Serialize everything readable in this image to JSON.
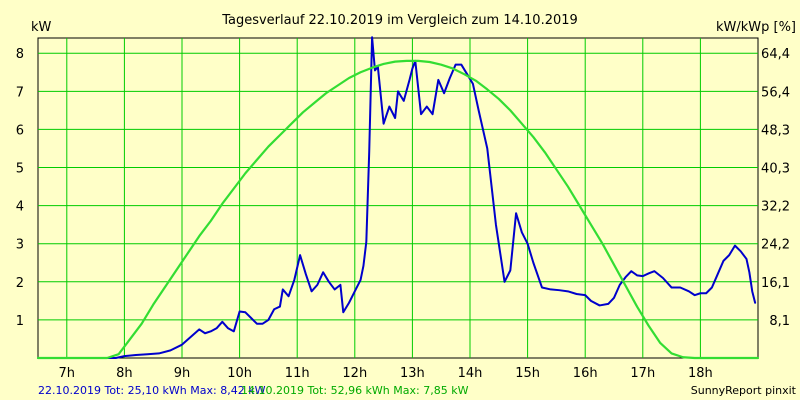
{
  "chart_data": {
    "type": "line",
    "title": "Tagesverlauf 22.10.2019 im Vergleich zum 14.10.2019",
    "ylabel_left": "kW",
    "ylabel_right": "kW/kWp [%]",
    "xlim": [
      6.5,
      19.0
    ],
    "ylim": [
      0,
      8.4
    ],
    "x_ticks": [
      7,
      8,
      9,
      10,
      11,
      12,
      13,
      14,
      15,
      16,
      17,
      18
    ],
    "x_tick_labels": [
      "7h",
      "8h",
      "9h",
      "10h",
      "11h",
      "12h",
      "13h",
      "14h",
      "15h",
      "16h",
      "17h",
      "18h"
    ],
    "y_ticks_left": [
      1,
      2,
      3,
      4,
      5,
      6,
      7,
      8
    ],
    "y_tick_labels_left": [
      "1",
      "2",
      "3",
      "4",
      "5",
      "6",
      "7",
      "8"
    ],
    "y_ticks_right": [
      1,
      2,
      3,
      4,
      5,
      6,
      7,
      8
    ],
    "y_tick_labels_right": [
      "8,1",
      "16,1",
      "24,2",
      "32,2",
      "40,3",
      "48,3",
      "56,4",
      "64,4"
    ],
    "grid": true,
    "colors": {
      "background": "#ffffc8",
      "grid": "#00cc00",
      "series_1": "#0000cc",
      "series_2": "#33dd33"
    },
    "series": [
      {
        "name": "22.10.2019",
        "color": "#0000cc",
        "points": [
          [
            6.5,
            0.0
          ],
          [
            7.0,
            0.0
          ],
          [
            7.5,
            0.0
          ],
          [
            7.85,
            0.0
          ],
          [
            8.0,
            0.05
          ],
          [
            8.2,
            0.08
          ],
          [
            8.4,
            0.1
          ],
          [
            8.6,
            0.12
          ],
          [
            8.8,
            0.2
          ],
          [
            9.0,
            0.35
          ],
          [
            9.15,
            0.55
          ],
          [
            9.3,
            0.75
          ],
          [
            9.4,
            0.65
          ],
          [
            9.5,
            0.7
          ],
          [
            9.6,
            0.78
          ],
          [
            9.7,
            0.95
          ],
          [
            9.8,
            0.78
          ],
          [
            9.9,
            0.7
          ],
          [
            10.0,
            1.22
          ],
          [
            10.1,
            1.2
          ],
          [
            10.2,
            1.05
          ],
          [
            10.3,
            0.9
          ],
          [
            10.4,
            0.9
          ],
          [
            10.5,
            1.0
          ],
          [
            10.6,
            1.28
          ],
          [
            10.7,
            1.35
          ],
          [
            10.75,
            1.8
          ],
          [
            10.85,
            1.62
          ],
          [
            10.95,
            2.05
          ],
          [
            11.05,
            2.7
          ],
          [
            11.15,
            2.2
          ],
          [
            11.25,
            1.75
          ],
          [
            11.35,
            1.92
          ],
          [
            11.45,
            2.25
          ],
          [
            11.55,
            2.0
          ],
          [
            11.65,
            1.8
          ],
          [
            11.75,
            1.92
          ],
          [
            11.8,
            1.2
          ],
          [
            11.9,
            1.45
          ],
          [
            12.0,
            1.75
          ],
          [
            12.1,
            2.05
          ],
          [
            12.15,
            2.42
          ],
          [
            12.2,
            3.05
          ],
          [
            12.25,
            5.4
          ],
          [
            12.3,
            8.42
          ],
          [
            12.35,
            7.55
          ],
          [
            12.4,
            7.65
          ],
          [
            12.5,
            6.15
          ],
          [
            12.6,
            6.6
          ],
          [
            12.7,
            6.3
          ],
          [
            12.75,
            7.0
          ],
          [
            12.85,
            6.75
          ],
          [
            12.95,
            7.3
          ],
          [
            13.0,
            7.6
          ],
          [
            13.05,
            7.8
          ],
          [
            13.15,
            6.4
          ],
          [
            13.25,
            6.6
          ],
          [
            13.35,
            6.4
          ],
          [
            13.45,
            7.3
          ],
          [
            13.55,
            6.95
          ],
          [
            13.65,
            7.35
          ],
          [
            13.75,
            7.7
          ],
          [
            13.85,
            7.7
          ],
          [
            13.95,
            7.45
          ],
          [
            14.05,
            7.2
          ],
          [
            14.15,
            6.5
          ],
          [
            14.3,
            5.5
          ],
          [
            14.45,
            3.5
          ],
          [
            14.6,
            2.0
          ],
          [
            14.7,
            2.3
          ],
          [
            14.8,
            3.8
          ],
          [
            14.9,
            3.3
          ],
          [
            15.0,
            3.0
          ],
          [
            15.1,
            2.5
          ],
          [
            15.25,
            1.85
          ],
          [
            15.4,
            1.8
          ],
          [
            15.55,
            1.78
          ],
          [
            15.7,
            1.75
          ],
          [
            15.85,
            1.68
          ],
          [
            16.0,
            1.65
          ],
          [
            16.1,
            1.5
          ],
          [
            16.25,
            1.38
          ],
          [
            16.4,
            1.42
          ],
          [
            16.5,
            1.58
          ],
          [
            16.6,
            1.92
          ],
          [
            16.7,
            2.12
          ],
          [
            16.8,
            2.28
          ],
          [
            16.9,
            2.17
          ],
          [
            17.0,
            2.15
          ],
          [
            17.1,
            2.22
          ],
          [
            17.2,
            2.28
          ],
          [
            17.35,
            2.1
          ],
          [
            17.5,
            1.85
          ],
          [
            17.65,
            1.85
          ],
          [
            17.8,
            1.75
          ],
          [
            17.9,
            1.65
          ],
          [
            18.0,
            1.7
          ],
          [
            18.1,
            1.7
          ],
          [
            18.2,
            1.85
          ],
          [
            18.3,
            2.2
          ],
          [
            18.4,
            2.55
          ],
          [
            18.5,
            2.7
          ],
          [
            18.6,
            2.95
          ],
          [
            18.7,
            2.8
          ],
          [
            18.8,
            2.6
          ],
          [
            18.85,
            2.25
          ],
          [
            18.9,
            1.75
          ],
          [
            18.95,
            1.45
          ]
        ]
      },
      {
        "name": "14.10.2019",
        "color": "#33dd33",
        "points": [
          [
            6.5,
            0.0
          ],
          [
            7.0,
            0.0
          ],
          [
            7.4,
            0.0
          ],
          [
            7.7,
            0.0
          ],
          [
            7.9,
            0.1
          ],
          [
            8.1,
            0.5
          ],
          [
            8.3,
            0.9
          ],
          [
            8.5,
            1.4
          ],
          [
            8.7,
            1.85
          ],
          [
            8.9,
            2.3
          ],
          [
            9.1,
            2.75
          ],
          [
            9.3,
            3.2
          ],
          [
            9.5,
            3.6
          ],
          [
            9.7,
            4.05
          ],
          [
            9.9,
            4.45
          ],
          [
            10.1,
            4.85
          ],
          [
            10.3,
            5.2
          ],
          [
            10.5,
            5.55
          ],
          [
            10.7,
            5.85
          ],
          [
            10.9,
            6.15
          ],
          [
            11.1,
            6.45
          ],
          [
            11.3,
            6.7
          ],
          [
            11.5,
            6.95
          ],
          [
            11.7,
            7.15
          ],
          [
            11.9,
            7.35
          ],
          [
            12.1,
            7.5
          ],
          [
            12.3,
            7.62
          ],
          [
            12.5,
            7.72
          ],
          [
            12.7,
            7.78
          ],
          [
            12.9,
            7.8
          ],
          [
            13.1,
            7.8
          ],
          [
            13.3,
            7.77
          ],
          [
            13.5,
            7.7
          ],
          [
            13.7,
            7.6
          ],
          [
            13.9,
            7.45
          ],
          [
            14.1,
            7.28
          ],
          [
            14.3,
            7.05
          ],
          [
            14.5,
            6.8
          ],
          [
            14.7,
            6.5
          ],
          [
            14.9,
            6.15
          ],
          [
            15.1,
            5.8
          ],
          [
            15.3,
            5.4
          ],
          [
            15.5,
            4.95
          ],
          [
            15.7,
            4.5
          ],
          [
            15.9,
            4.0
          ],
          [
            16.1,
            3.5
          ],
          [
            16.3,
            3.0
          ],
          [
            16.5,
            2.45
          ],
          [
            16.7,
            1.9
          ],
          [
            16.9,
            1.35
          ],
          [
            17.1,
            0.85
          ],
          [
            17.3,
            0.4
          ],
          [
            17.5,
            0.12
          ],
          [
            17.7,
            0.02
          ],
          [
            17.9,
            0.0
          ],
          [
            19.0,
            0.0
          ]
        ]
      }
    ]
  },
  "footer": {
    "left_blue": "22.10.2019 Tot: 25,10 kWh Max: 8,42 kW",
    "middle_green": "14.10.2019 Tot: 52,96 kWh Max: 7,85 kW",
    "right": "SunnyReport pinxit"
  }
}
